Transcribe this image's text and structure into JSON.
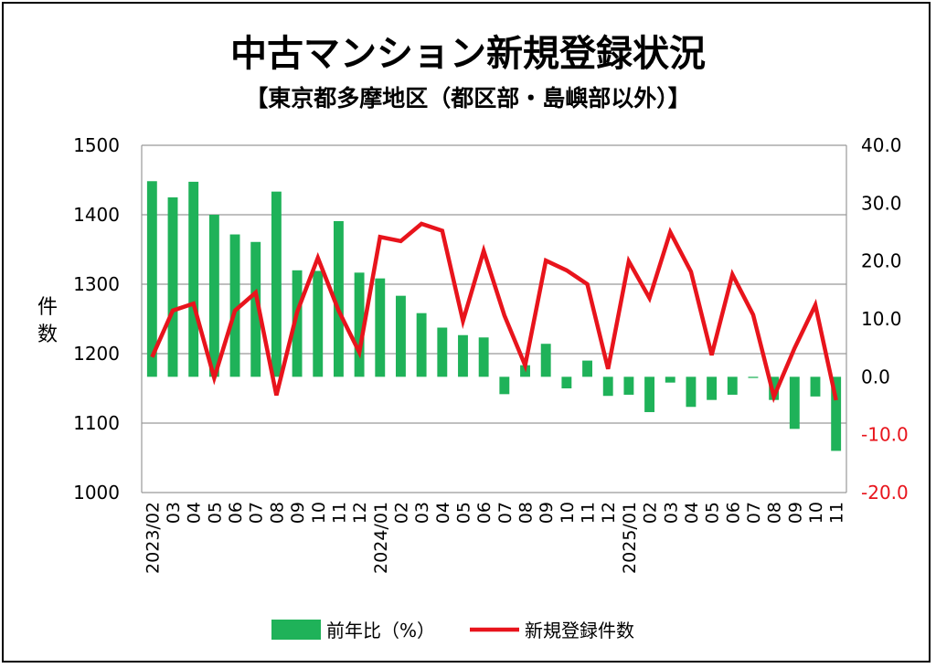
{
  "title": "中古マンション新規登録状況",
  "subtitle": "【東京都多摩地区（都区部・島嶼部以外）】",
  "chart_data": {
    "type": "bar+line",
    "ylabel_left": "件数",
    "ylim_left": [
      1000,
      1500
    ],
    "yticks_left": [
      "1000",
      "1100",
      "1200",
      "1300",
      "1400",
      "1500"
    ],
    "ylim_right": [
      -20,
      40
    ],
    "yticks_right": [
      "-20.0",
      "-10.0",
      "0.0",
      "10.0",
      "20.0",
      "30.0",
      "40.0"
    ],
    "right_axis_colors": {
      "positive": "#000000",
      "negative": "#e8141c"
    },
    "categories": [
      "2023/02",
      "03",
      "04",
      "05",
      "06",
      "07",
      "08",
      "09",
      "10",
      "11",
      "12",
      "2024/01",
      "02",
      "03",
      "04",
      "05",
      "06",
      "07",
      "08",
      "09",
      "10",
      "11",
      "12",
      "2025/01",
      "02",
      "03",
      "04",
      "05",
      "06",
      "07",
      "08",
      "09",
      "10",
      "11"
    ],
    "series": [
      {
        "name": "前年比（%）",
        "type": "bar",
        "axis": "right",
        "color": "#1fb259",
        "values": [
          33.8,
          31.0,
          33.7,
          28.0,
          24.6,
          23.3,
          32.0,
          18.4,
          18.3,
          26.9,
          18.0,
          17.0,
          14.0,
          11.0,
          8.5,
          7.2,
          6.8,
          -3.0,
          2.0,
          5.7,
          -2.0,
          2.8,
          -3.3,
          -3.1,
          -6.1,
          -1.0,
          -5.2,
          -4.0,
          -3.1,
          -0.2,
          -4.0,
          -9.0,
          -3.4,
          -12.8
        ]
      },
      {
        "name": "新規登録件数",
        "type": "line",
        "axis": "left",
        "color": "#e8141c",
        "values": [
          1195,
          1262,
          1272,
          1165,
          1262,
          1288,
          1140,
          1260,
          1338,
          1262,
          1202,
          1368,
          1362,
          1387,
          1377,
          1247,
          1348,
          1255,
          1183,
          1334,
          1320,
          1300,
          1178,
          1333,
          1280,
          1375,
          1318,
          1198,
          1314,
          1256,
          1138,
          1208,
          1270,
          1133
        ]
      }
    ],
    "legend_position": "bottom",
    "grid": true
  }
}
